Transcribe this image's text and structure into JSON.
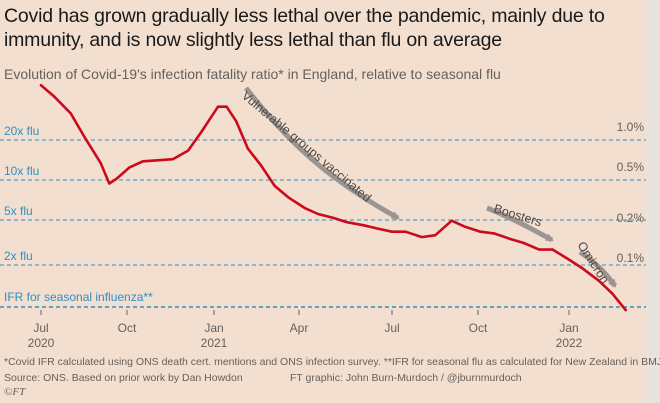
{
  "title": "Covid has grown gradually less lethal over the pandemic, mainly due to immunity, and is now slightly less lethal than flu on average",
  "subtitle": "Evolution of Covid-19's infection fatality ratio* in England, relative to seasonal flu",
  "footnote": "*Covid IFR calculated using ONS death cert. mentions and ONS infection survey. **IFR for seasonal flu as calculated for New Zealand in BMJ",
  "source": "Source: ONS. Based on prior work by Dan Howdon",
  "credit": "FT graphic: John Burn-Murdoch / @jburnmurdoch",
  "logo": "©FT",
  "colors": {
    "line": "#cc0a1e",
    "dashed": "#2f8fc4",
    "annotation": "#9b9490"
  },
  "chart_data": {
    "type": "line",
    "y_scale": "log",
    "ylabel_left_ticks": [
      {
        "label": "20x flu",
        "value": 20
      },
      {
        "label": "10x flu",
        "value": 10
      },
      {
        "label": "5x flu",
        "value": 5
      },
      {
        "label": "2x flu",
        "value": 2
      },
      {
        "label": "IFR for seasonal influenza**",
        "value": 1
      }
    ],
    "ylabel_right_ticks": [
      "1.0%",
      "0.5%",
      "0.2%",
      "0.1%"
    ],
    "x_ticks": [
      "Jul",
      "Oct",
      "Jan",
      "Apr",
      "Jul",
      "Oct",
      "Jan"
    ],
    "x_tick_years": [
      "2020",
      "",
      "2021",
      "",
      "",
      "",
      "2022"
    ],
    "annotations": [
      "Vulnerable groups vaccinated",
      "Boosters",
      "Omicron"
    ],
    "series": [
      {
        "x": [
          "2020-07-01",
          "2020-07-15",
          "2020-08-01",
          "2020-08-15",
          "2020-09-01",
          "2020-09-10",
          "2020-09-18",
          "2020-10-01",
          "2020-10-15",
          "2020-11-01",
          "2020-11-15",
          "2020-12-01",
          "2020-12-15",
          "2021-01-01",
          "2021-01-10",
          "2021-01-20",
          "2021-02-01",
          "2021-02-15",
          "2021-03-01",
          "2021-03-15",
          "2021-04-01",
          "2021-04-15",
          "2021-05-01",
          "2021-05-15",
          "2021-06-01",
          "2021-06-15",
          "2021-07-01",
          "2021-07-15",
          "2021-08-01",
          "2021-08-15",
          "2021-09-01",
          "2021-09-15",
          "2021-10-01",
          "2021-10-15",
          "2021-11-01",
          "2021-11-15",
          "2021-12-01",
          "2021-12-15",
          "2022-01-01",
          "2022-01-15",
          "2022-02-01",
          "2022-02-15",
          "2022-03-01"
        ],
        "values": [
          40,
          33,
          25,
          17,
          11,
          7.8,
          8.5,
          10.2,
          11.3,
          11.5,
          11.7,
          13.5,
          18.5,
          28,
          28,
          22,
          14,
          10.5,
          7.5,
          6.2,
          5.2,
          4.7,
          4.4,
          4.1,
          3.9,
          3.7,
          3.5,
          3.5,
          3.2,
          3.3,
          4.2,
          3.8,
          3.5,
          3.4,
          3.1,
          2.9,
          2.6,
          2.6,
          2.2,
          1.9,
          1.55,
          1.25,
          0.95
        ]
      }
    ]
  }
}
